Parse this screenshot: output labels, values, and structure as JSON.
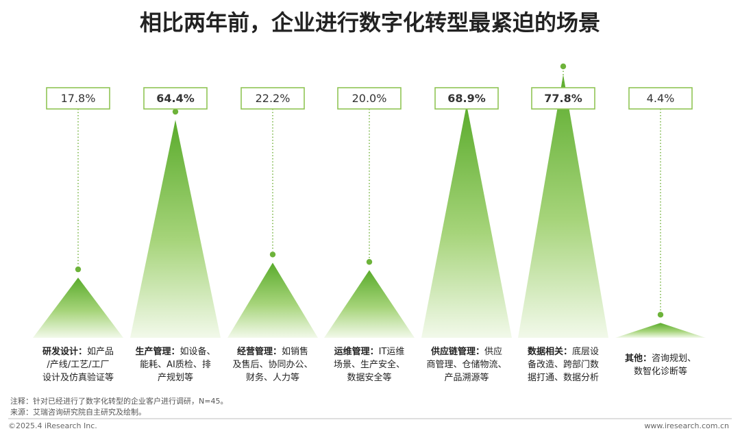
{
  "chart_data": {
    "type": "bar",
    "title": "相比两年前，企业进行数字化转型最紧迫的场景",
    "unit": "%",
    "ylim": [
      0,
      80
    ],
    "categories": [
      {
        "label": "研发设计：",
        "desc": [
          "如产品",
          "/产线/工艺/工厂",
          "设计及仿真验证等"
        ],
        "value": 17.8,
        "display": "17.8%",
        "emphasis": false
      },
      {
        "label": "生产管理：",
        "desc": [
          "如设备、",
          "能耗、AI质检、排",
          "产规划等"
        ],
        "value": 64.4,
        "display": "64.4%",
        "emphasis": true
      },
      {
        "label": "经营管理：",
        "desc": [
          "如销售",
          "及售后、协同办公、",
          "财务、人力等"
        ],
        "value": 22.2,
        "display": "22.2%",
        "emphasis": false
      },
      {
        "label": "运维管理：",
        "desc": [
          "IT运维",
          "场景、生产安全、",
          "数据安全等"
        ],
        "value": 20.0,
        "display": "20.0%",
        "emphasis": false
      },
      {
        "label": "供应链管理：",
        "desc": [
          "供应",
          "商管理、仓储物流、",
          "产品溯源等"
        ],
        "value": 68.9,
        "display": "68.9%",
        "emphasis": true
      },
      {
        "label": "数据相关：",
        "desc": [
          "底层设",
          "备改造、跨部门数",
          "据打通、数据分析"
        ],
        "value": 77.8,
        "display": "77.8%",
        "emphasis": true
      },
      {
        "label": "其他：",
        "desc": [
          "咨询规划、",
          "数智化诊断等"
        ],
        "value": 4.4,
        "display": "4.4%",
        "emphasis": false
      }
    ],
    "colors": {
      "peak": "#5aab2c",
      "base": "#eef7e4",
      "box_border": "#8fc454",
      "leader": "#73b23c"
    }
  },
  "notes": {
    "note": "注释：针对已经进行了数字化转型的企业客户进行调研，N=45。",
    "source": "来源：艾瑞咨询研究院自主研究及绘制。"
  },
  "footer": {
    "copyright": "©2025.4 iResearch Inc.",
    "website": "www.iresearch.com.cn"
  }
}
